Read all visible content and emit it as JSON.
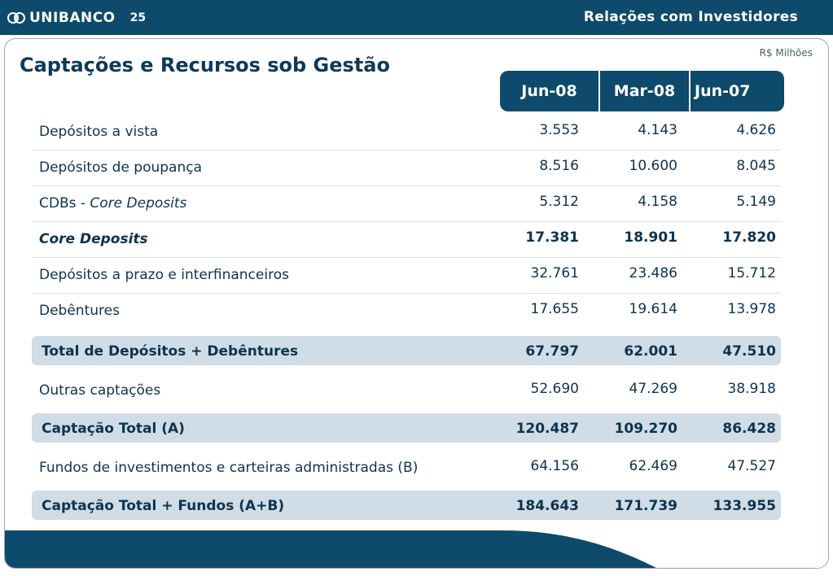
{
  "header": {
    "brand": "UNIBANCO",
    "page_number": "25",
    "section": "Relações com Investidores",
    "brand_icon": "unibanco-logo-icon"
  },
  "content": {
    "title": "Captações e Recursos sob Gestão",
    "unit": "R$ Milhões",
    "columns": [
      "Jun-08",
      "Mar-08",
      "Jun-07"
    ],
    "rows": [
      {
        "label": "Depósitos a vista",
        "values": [
          "3.553",
          "4.143",
          "4.626"
        ]
      },
      {
        "label": "Depósitos de poupança",
        "values": [
          "8.516",
          "10.600",
          "8.045"
        ]
      },
      {
        "label": "CDBs - ",
        "label_italic": "Core Deposits",
        "values": [
          "5.312",
          "4.158",
          "5.149"
        ]
      },
      {
        "label": "Core Deposits",
        "values": [
          "17.381",
          "18.901",
          "17.820"
        ]
      },
      {
        "label": "Depósitos a prazo e interfinanceiros",
        "values": [
          "32.761",
          "23.486",
          "15.712"
        ]
      },
      {
        "label": "Debêntures",
        "values": [
          "17.655",
          "19.614",
          "13.978"
        ]
      },
      {
        "label": "Total de Depósitos + Debêntures",
        "values": [
          "67.797",
          "62.001",
          "47.510"
        ]
      },
      {
        "label": "Outras captações",
        "values": [
          "52.690",
          "47.269",
          "38.918"
        ]
      },
      {
        "label": "Captação Total (A)",
        "values": [
          "120.487",
          "109.270",
          "86.428"
        ]
      },
      {
        "label": "Fundos de investimentos e carteiras administradas (B)",
        "values": [
          "64.156",
          "62.469",
          "47.527"
        ]
      },
      {
        "label": "Captação Total + Fundos (A+B)",
        "values": [
          "184.643",
          "171.739",
          "133.955"
        ]
      }
    ]
  },
  "colors": {
    "navy": "#0d4a6b",
    "total_row_bg": "#d0dde6"
  }
}
